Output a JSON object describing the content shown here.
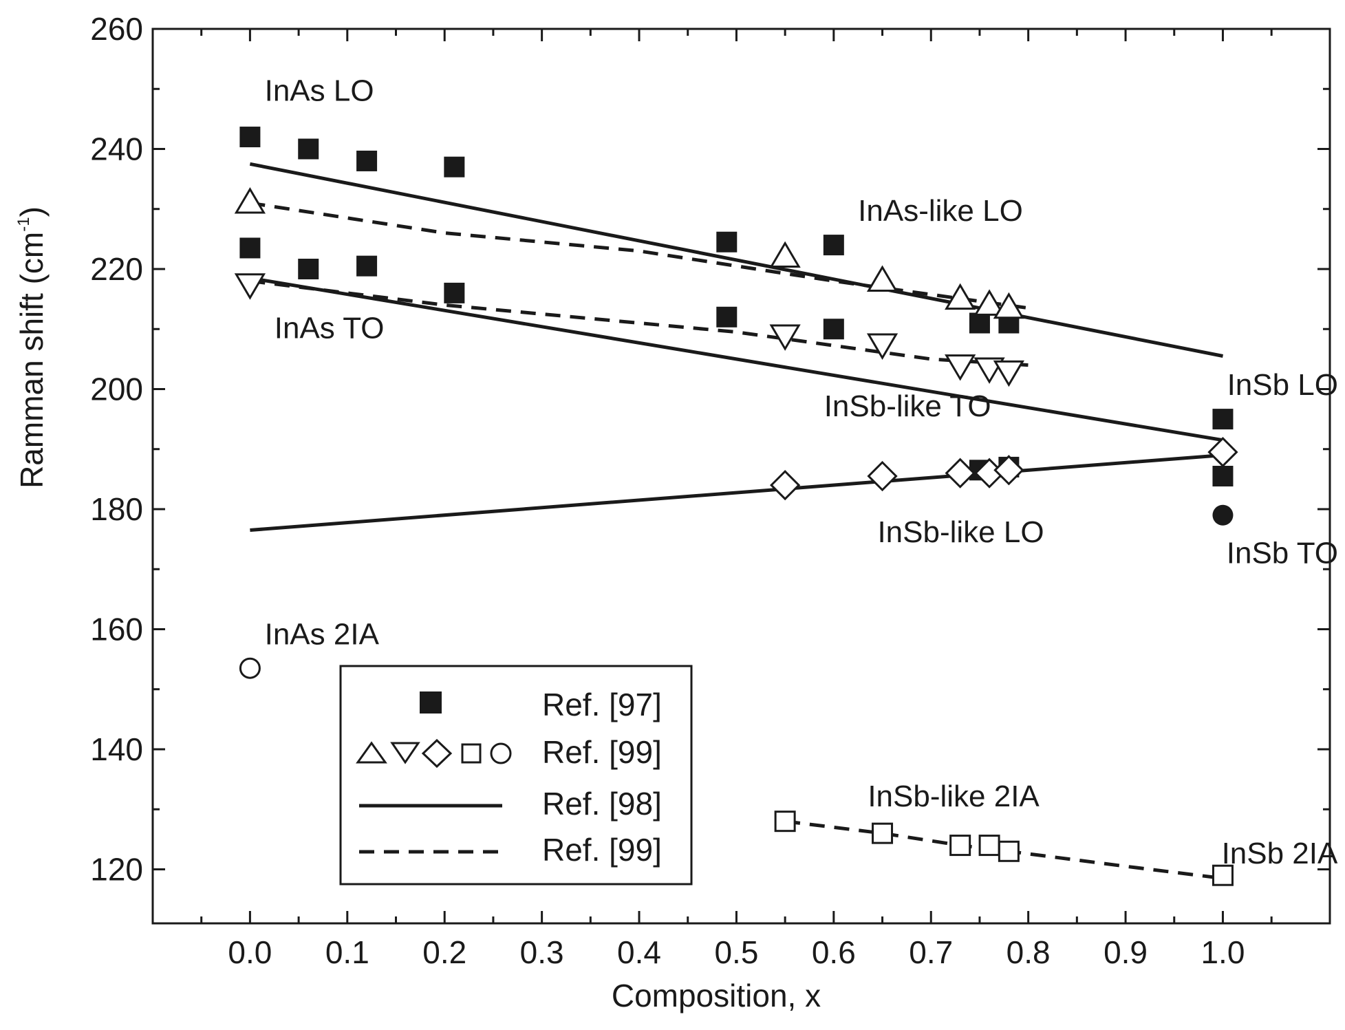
{
  "chart_data": {
    "type": "scatter",
    "xlabel": "Composition, x",
    "ylabel_prefix": "Ramman shift (cm",
    "ylabel_sup": "-1",
    "ylabel_suffix": ")",
    "xlim": [
      -0.1,
      1.11
    ],
    "ylim": [
      111,
      260
    ],
    "x_ticks": [
      0.0,
      0.1,
      0.2,
      0.3,
      0.4,
      0.5,
      0.6,
      0.7,
      0.8,
      0.9,
      1.0
    ],
    "x_tick_labels": [
      "0.0",
      "0.1",
      "0.2",
      "0.3",
      "0.4",
      "0.5",
      "0.6",
      "0.7",
      "0.8",
      "0.9",
      "1.0"
    ],
    "x_minor_ticks": [
      -0.05,
      0.05,
      0.15,
      0.25,
      0.35,
      0.45,
      0.55,
      0.65,
      0.75,
      0.85,
      0.95,
      1.05
    ],
    "y_ticks": [
      120,
      140,
      160,
      180,
      200,
      220,
      240,
      260
    ],
    "y_tick_labels": [
      "120",
      "140",
      "160",
      "180",
      "200",
      "220",
      "240",
      "260"
    ],
    "y_minor_ticks": [
      130,
      150,
      170,
      190,
      210,
      230,
      250
    ],
    "colors": {
      "ink": "#1a1a1a",
      "background": "#ffffff"
    },
    "series": [
      {
        "name": "Ref. [97] filled squares",
        "marker": "filled-square",
        "points": [
          [
            0.0,
            242
          ],
          [
            0.06,
            240
          ],
          [
            0.12,
            238
          ],
          [
            0.21,
            237
          ],
          [
            0.49,
            224.5
          ],
          [
            0.6,
            224
          ],
          [
            0.0,
            223.5
          ],
          [
            0.06,
            220
          ],
          [
            0.12,
            220.5
          ],
          [
            0.21,
            216
          ],
          [
            0.49,
            212
          ],
          [
            0.6,
            210
          ],
          [
            0.75,
            211
          ],
          [
            0.78,
            211
          ],
          [
            0.75,
            186.5
          ],
          [
            0.78,
            187
          ],
          [
            1.0,
            195
          ],
          [
            1.0,
            185.5
          ]
        ]
      },
      {
        "name": "Ref. [97] filled circle (InSb TO)",
        "marker": "filled-circle",
        "points": [
          [
            1.0,
            179
          ]
        ]
      },
      {
        "name": "Ref. [99] up-triangles (InAs-like LO)",
        "marker": "open-triangle-up",
        "points": [
          [
            0.0,
            231
          ],
          [
            0.55,
            222
          ],
          [
            0.65,
            218
          ],
          [
            0.73,
            215
          ],
          [
            0.76,
            214
          ],
          [
            0.78,
            213.5
          ]
        ]
      },
      {
        "name": "Ref. [99] down-triangles (InSb-like TO)",
        "marker": "open-triangle-down",
        "points": [
          [
            0.0,
            217.5
          ],
          [
            0.55,
            209
          ],
          [
            0.65,
            207.5
          ],
          [
            0.73,
            204
          ],
          [
            0.76,
            203.5
          ],
          [
            0.78,
            203
          ]
        ]
      },
      {
        "name": "Ref. [99] diamonds (InSb-like LO)",
        "marker": "open-diamond",
        "points": [
          [
            0.55,
            184
          ],
          [
            0.65,
            185.5
          ],
          [
            0.73,
            186
          ],
          [
            0.76,
            186
          ],
          [
            0.78,
            186.5
          ],
          [
            1.0,
            189.5
          ]
        ]
      },
      {
        "name": "Ref. [99] open squares (InSb-like 2IA)",
        "marker": "open-square",
        "points": [
          [
            0.55,
            128
          ],
          [
            0.65,
            126
          ],
          [
            0.73,
            124
          ],
          [
            0.76,
            124
          ],
          [
            0.78,
            123
          ],
          [
            1.0,
            119
          ]
        ]
      },
      {
        "name": "Ref. [99] open circle (InAs 2IA)",
        "marker": "open-circle",
        "points": [
          [
            0.0,
            153.5
          ]
        ]
      }
    ],
    "lines": [
      {
        "name": "Ref. [98] InAs-like LO",
        "style": "solid",
        "points": [
          [
            0.0,
            237.5
          ],
          [
            1.0,
            205.5
          ]
        ]
      },
      {
        "name": "Ref. [98] InSb-like TO",
        "style": "solid",
        "points": [
          [
            0.0,
            218.5
          ],
          [
            1.0,
            191.5
          ]
        ]
      },
      {
        "name": "Ref. [98] InSb-like LO",
        "style": "solid",
        "points": [
          [
            0.0,
            176.5
          ],
          [
            1.0,
            189
          ]
        ]
      },
      {
        "name": "Ref. [99] LO fit",
        "style": "dashed",
        "points": [
          [
            0.0,
            231
          ],
          [
            0.2,
            226
          ],
          [
            0.4,
            223
          ],
          [
            0.6,
            218
          ],
          [
            0.8,
            213.5
          ]
        ]
      },
      {
        "name": "Ref. [99] TO fit",
        "style": "dashed",
        "points": [
          [
            0.0,
            218
          ],
          [
            0.2,
            214
          ],
          [
            0.5,
            209.5
          ],
          [
            0.7,
            205
          ],
          [
            0.8,
            204
          ]
        ]
      },
      {
        "name": "Ref. [99] 2IA fit",
        "style": "dashed",
        "points": [
          [
            0.55,
            128
          ],
          [
            0.65,
            126
          ],
          [
            0.73,
            124
          ],
          [
            0.78,
            123
          ],
          [
            0.9,
            120.5
          ],
          [
            1.0,
            118.5
          ]
        ]
      }
    ],
    "annotations": [
      {
        "text": "InAs LO",
        "x": 0.015,
        "y": 248
      },
      {
        "text": "InAs TO",
        "x": 0.025,
        "y": 208.5
      },
      {
        "text": "InAs-like LO",
        "x": 0.625,
        "y": 228
      },
      {
        "text": "InSb-like TO",
        "x": 0.59,
        "y": 195.5
      },
      {
        "text": "InSb-like LO",
        "x": 0.645,
        "y": 174.5
      },
      {
        "text": "InSb LO",
        "x": 1.01,
        "y": 199
      },
      {
        "text": "InSb TO",
        "x": 1.01,
        "y": 171
      },
      {
        "text": "InAs 2IA",
        "x": 0.015,
        "y": 157.5
      },
      {
        "text": "InSb-like 2IA",
        "x": 0.635,
        "y": 130.5
      },
      {
        "text": "InSb 2IA",
        "x": 1.01,
        "y": 121
      }
    ],
    "legend": {
      "placement": "lower-center",
      "entries": [
        {
          "symbol": "filled-square",
          "label": "Ref. [97]"
        },
        {
          "symbol": "open-markers",
          "label": "Ref. [99]"
        },
        {
          "symbol": "solid-line",
          "label": "Ref. [98]"
        },
        {
          "symbol": "dashed-line",
          "label": "Ref. [99]"
        }
      ]
    }
  }
}
